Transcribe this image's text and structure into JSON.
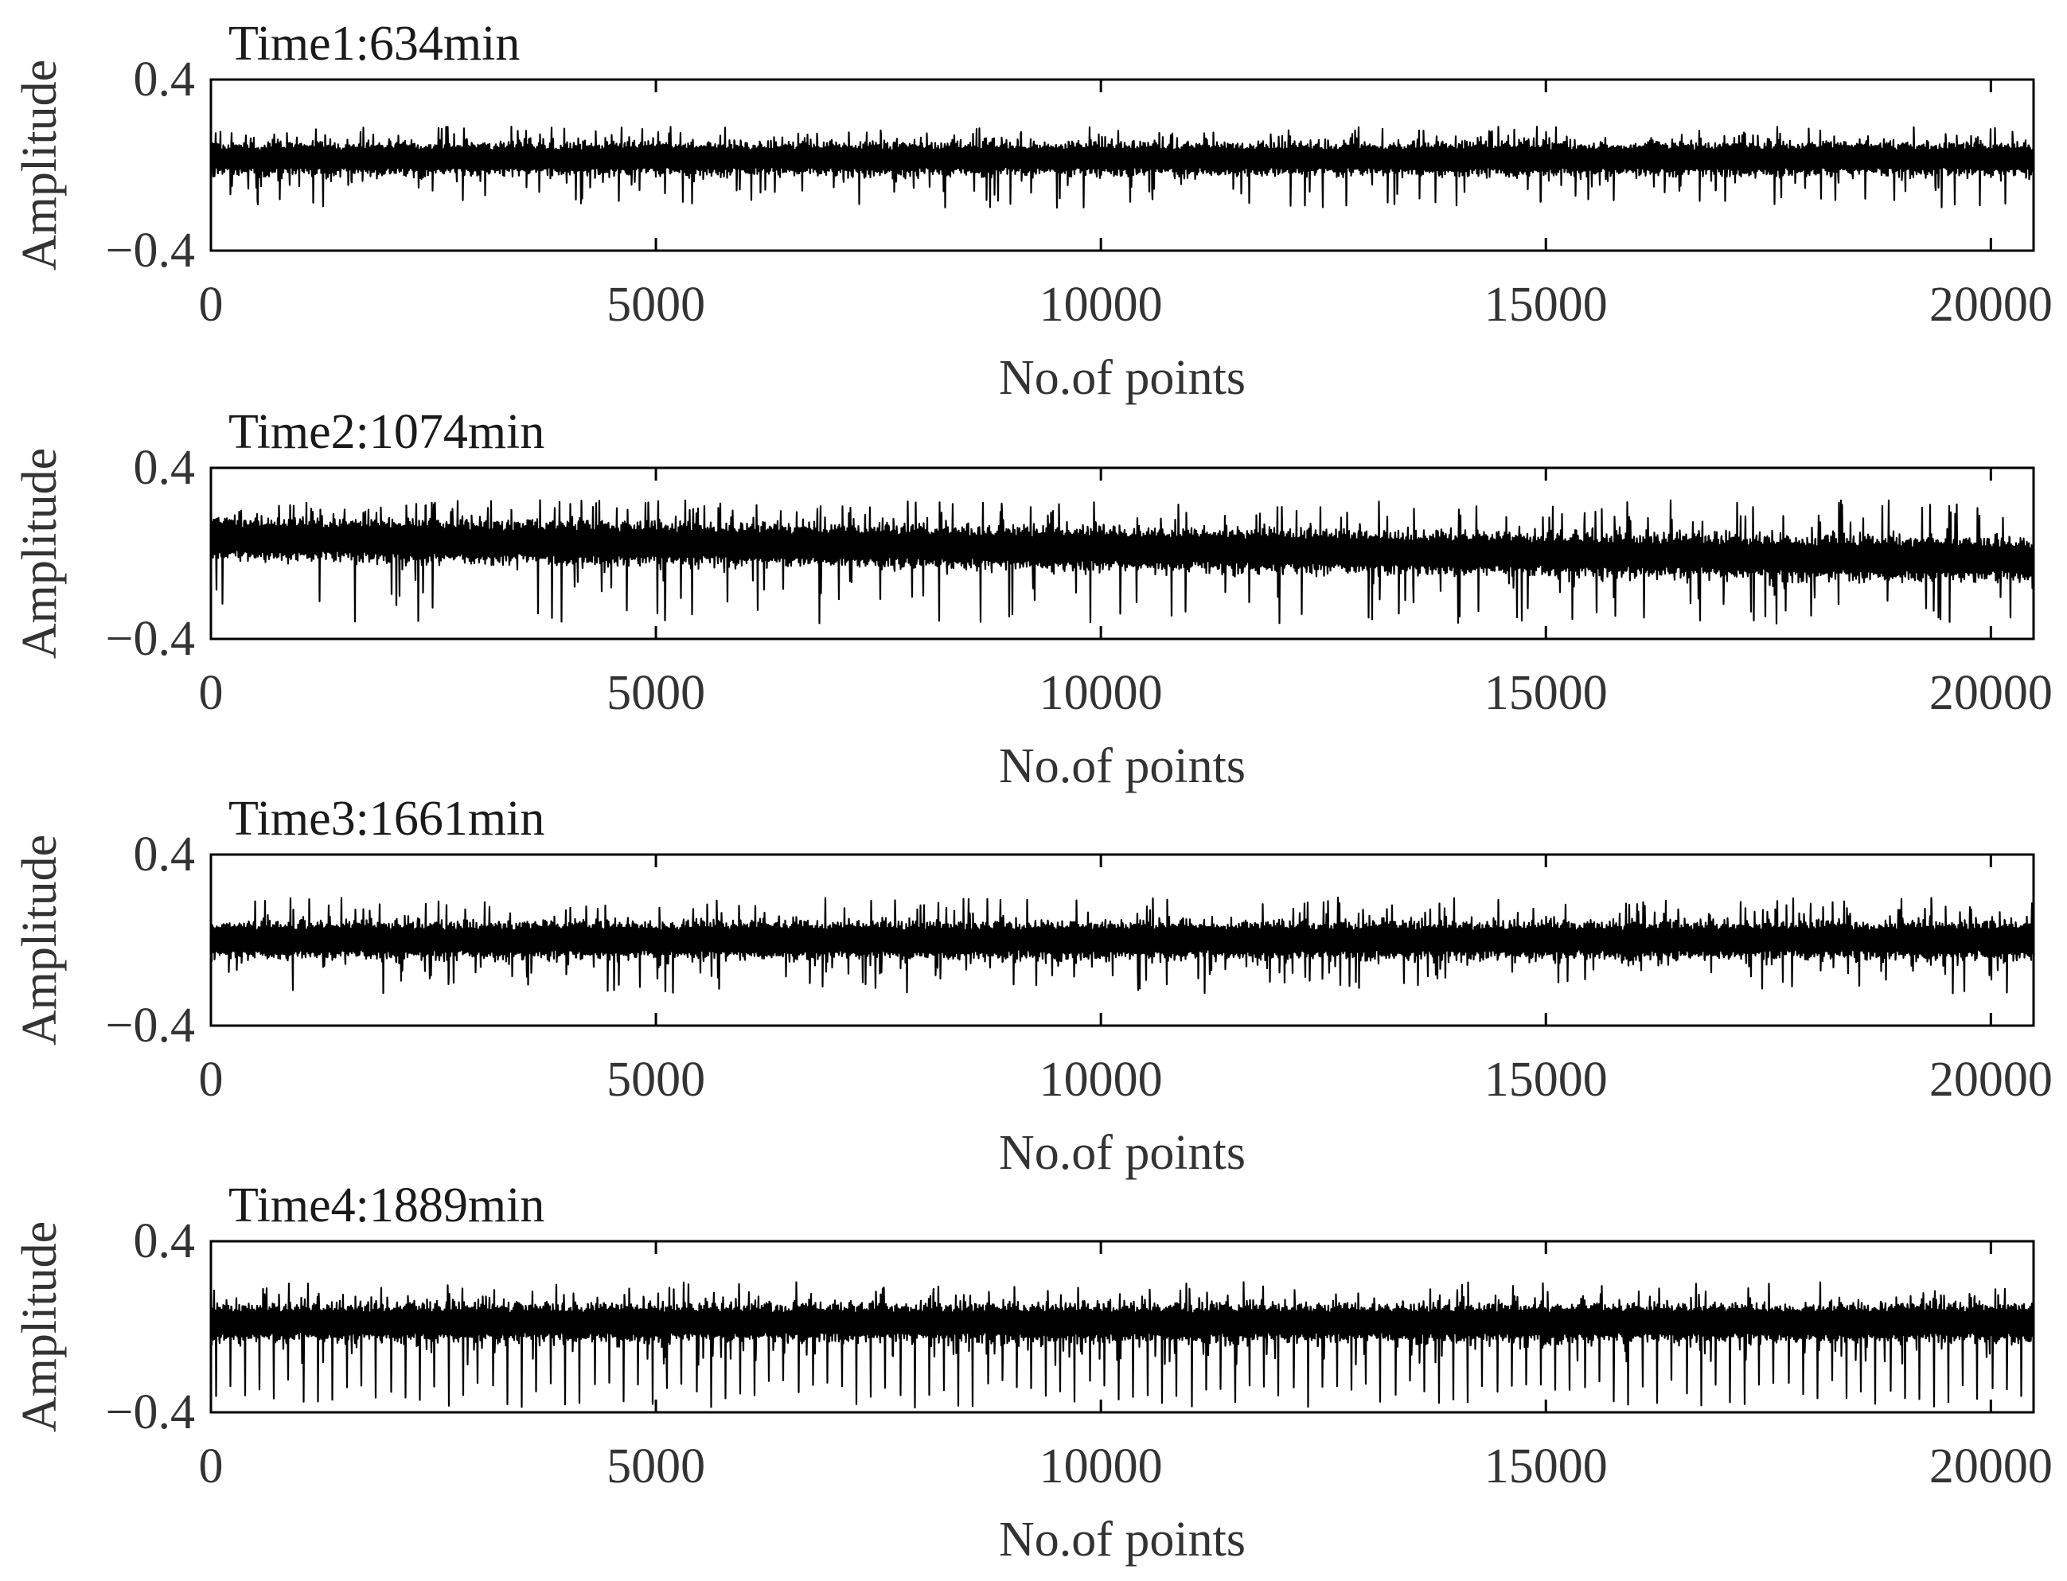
{
  "chart_data": [
    {
      "type": "line",
      "title": "Time1:634min",
      "xlabel": "No.of points",
      "ylabel": "Amplitude",
      "xlim": [
        0,
        20480
      ],
      "ylim": [
        -0.4,
        0.4
      ],
      "xticks": [
        0,
        5000,
        10000,
        15000,
        20000
      ],
      "xtick_labels": [
        "0",
        "5000",
        "10000",
        "15000",
        "20000"
      ],
      "yticks": [
        0.4,
        -0.4
      ],
      "ytick_labels": [
        "0.4",
        "−0.4"
      ],
      "grid": false,
      "signal": {
        "n_points": 20480,
        "mean": 0.03,
        "trend_end": 0.03,
        "noise_amplitude": 0.07,
        "peak_range": [
          -0.2,
          0.18
        ],
        "impulsive_dips": false,
        "color": "#000000"
      }
    },
    {
      "type": "line",
      "title": "Time2:1074min",
      "xlabel": "No.of points",
      "ylabel": "Amplitude",
      "xlim": [
        0,
        20480
      ],
      "ylim": [
        -0.4,
        0.4
      ],
      "xticks": [
        0,
        5000,
        10000,
        15000,
        20000
      ],
      "xtick_labels": [
        "0",
        "5000",
        "10000",
        "15000",
        "20000"
      ],
      "yticks": [
        0.4,
        -0.4
      ],
      "ytick_labels": [
        "0.4",
        "−0.4"
      ],
      "grid": false,
      "signal": {
        "n_points": 20480,
        "mean": 0.07,
        "trend_end": -0.03,
        "noise_amplitude": 0.09,
        "peak_range": [
          -0.33,
          0.25
        ],
        "impulsive_dips": false,
        "color": "#000000"
      }
    },
    {
      "type": "line",
      "title": "Time3:1661min",
      "xlabel": "No.of points",
      "ylabel": "Amplitude",
      "xlim": [
        0,
        20480
      ],
      "ylim": [
        -0.4,
        0.4
      ],
      "xticks": [
        0,
        5000,
        10000,
        15000,
        20000
      ],
      "xtick_labels": [
        "0",
        "5000",
        "10000",
        "15000",
        "20000"
      ],
      "yticks": [
        0.4,
        -0.4
      ],
      "ytick_labels": [
        "0.4",
        "−0.4"
      ],
      "grid": false,
      "signal": {
        "n_points": 20480,
        "mean": 0.0,
        "trend_end": 0.0,
        "noise_amplitude": 0.08,
        "peak_range": [
          -0.25,
          0.2
        ],
        "impulsive_dips": false,
        "color": "#000000"
      }
    },
    {
      "type": "line",
      "title": "Time4:1889min",
      "xlabel": "No.of points",
      "ylabel": "Amplitude",
      "xlim": [
        0,
        20480
      ],
      "ylim": [
        -0.4,
        0.4
      ],
      "xticks": [
        0,
        5000,
        10000,
        15000,
        20000
      ],
      "xtick_labels": [
        "0",
        "5000",
        "10000",
        "15000",
        "20000"
      ],
      "yticks": [
        0.4,
        -0.4
      ],
      "ytick_labels": [
        "0.4",
        "−0.4"
      ],
      "grid": false,
      "signal": {
        "n_points": 20480,
        "mean": 0.02,
        "trend_end": 0.02,
        "noise_amplitude": 0.08,
        "peak_range": [
          -0.38,
          0.21
        ],
        "impulsive_dips": true,
        "color": "#000000"
      }
    }
  ]
}
